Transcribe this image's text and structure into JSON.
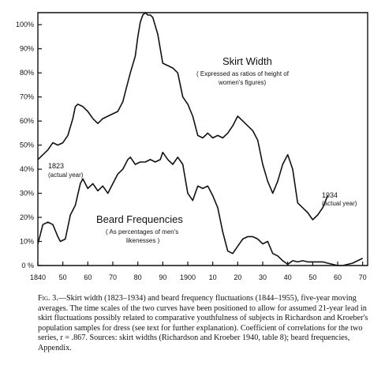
{
  "chart_data": {
    "type": "line",
    "title": "",
    "xlabel": "",
    "ylabel": "",
    "xlim": [
      1840,
      1972
    ],
    "ylim": [
      0,
      105
    ],
    "grid": false,
    "x_ticks": [
      1840,
      1850,
      1860,
      1870,
      1880,
      1890,
      1900,
      1910,
      1920,
      1930,
      1940,
      1950,
      1960,
      1970
    ],
    "x_tick_labels": [
      "1840",
      "50",
      "60",
      "70",
      "80",
      "90",
      "1900",
      "10",
      "20",
      "30",
      "40",
      "50",
      "60",
      "70"
    ],
    "y_ticks": [
      0,
      10,
      20,
      30,
      40,
      50,
      60,
      70,
      80,
      90,
      100
    ],
    "y_tick_labels": [
      "0 %",
      "10%",
      "20%",
      "30%",
      "40%",
      "50%",
      "60%",
      "70%",
      "80%",
      "90%",
      "100%"
    ],
    "series": [
      {
        "name": "Skirt Width",
        "x": [
          1840,
          1842,
          1844,
          1846,
          1848,
          1850,
          1852,
          1854,
          1855,
          1856,
          1858,
          1860,
          1862,
          1864,
          1866,
          1868,
          1870,
          1872,
          1874,
          1875,
          1877,
          1879,
          1880,
          1881,
          1882,
          1883,
          1884,
          1885,
          1886,
          1888,
          1890,
          1892,
          1894,
          1896,
          1898,
          1900,
          1902,
          1904,
          1906,
          1908,
          1910,
          1912,
          1914,
          1916,
          1918,
          1920,
          1922,
          1924,
          1926,
          1928,
          1930,
          1932,
          1934,
          1936,
          1938,
          1940,
          1942,
          1944,
          1946,
          1948,
          1950,
          1952,
          1954,
          1956
        ],
        "y": [
          44,
          46,
          48,
          51,
          50,
          51,
          54,
          61,
          66,
          67,
          66,
          64,
          61,
          59,
          61,
          62,
          63,
          64,
          68,
          72,
          80,
          87,
          95,
          101,
          104,
          105,
          104,
          104,
          103,
          96,
          84,
          83,
          82,
          80,
          70,
          67,
          62,
          54,
          53,
          55,
          53,
          54,
          53,
          55,
          58,
          62,
          60,
          58,
          56,
          52,
          42,
          35,
          30,
          35,
          42,
          46,
          40,
          26,
          24,
          22,
          19,
          21,
          24,
          29
        ]
      },
      {
        "name": "Beard Frequencies",
        "x": [
          1840,
          1841,
          1842,
          1844,
          1846,
          1848,
          1849,
          1851,
          1853,
          1855,
          1857,
          1858,
          1860,
          1862,
          1864,
          1866,
          1868,
          1870,
          1872,
          1874,
          1876,
          1877,
          1879,
          1881,
          1883,
          1885,
          1887,
          1889,
          1890,
          1892,
          1894,
          1896,
          1898,
          1900,
          1902,
          1904,
          1906,
          1908,
          1910,
          1912,
          1914,
          1915,
          1916,
          1918,
          1920,
          1922,
          1924,
          1926,
          1928,
          1930,
          1932,
          1934,
          1936,
          1938,
          1940,
          1942,
          1944,
          1946,
          1948,
          1950,
          1952,
          1954,
          1956,
          1958,
          1960,
          1962,
          1964,
          1966,
          1968,
          1970
        ],
        "y": [
          9,
          13,
          17,
          18,
          17,
          12,
          10,
          11,
          21,
          25,
          34,
          36,
          32,
          34,
          31,
          33,
          30,
          34,
          38,
          40,
          44,
          45,
          42,
          43,
          43,
          44,
          43,
          44,
          47,
          44,
          42,
          45,
          42,
          30,
          27,
          33,
          32,
          33,
          29,
          24,
          14,
          10,
          6,
          5,
          8,
          11,
          12,
          12,
          11,
          9,
          10,
          5,
          4,
          2,
          0.5,
          2,
          1.5,
          2,
          1.5,
          1.5,
          1.5,
          1.5,
          1,
          0.5,
          0,
          0,
          0.5,
          1,
          2,
          3
        ]
      }
    ],
    "annotations": {
      "skirt_title": "Skirt Width",
      "skirt_sub_1": "( Expressed as ratios of height of",
      "skirt_sub_2": "women's figures)",
      "beard_title": "Beard Frequencies",
      "beard_sub_1": "( As percentages of men's",
      "beard_sub_2": "likenesses )",
      "start_year": "1823",
      "start_year_note": "(actual year)",
      "end_year": "1934",
      "end_year_note": "(actual year)"
    }
  },
  "caption": {
    "fig_label": "Fig. 3.",
    "text": "—Skirt width (1823–1934) and beard frequency fluctuations (1844–1955), five-year moving averages. The time scales of the two curves have been positioned to allow for assumed 21-year lead in skirt fluctuations possibly related to comparative youthfulness of subjects in Richardson and Kroeber's population samples for dress (see text for further explanation). Coefficient of correlations for the two series, r = .867. Sources: skirt widths (Richardson and Kroeber 1940, table 8); beard frequencies, Appendix."
  }
}
